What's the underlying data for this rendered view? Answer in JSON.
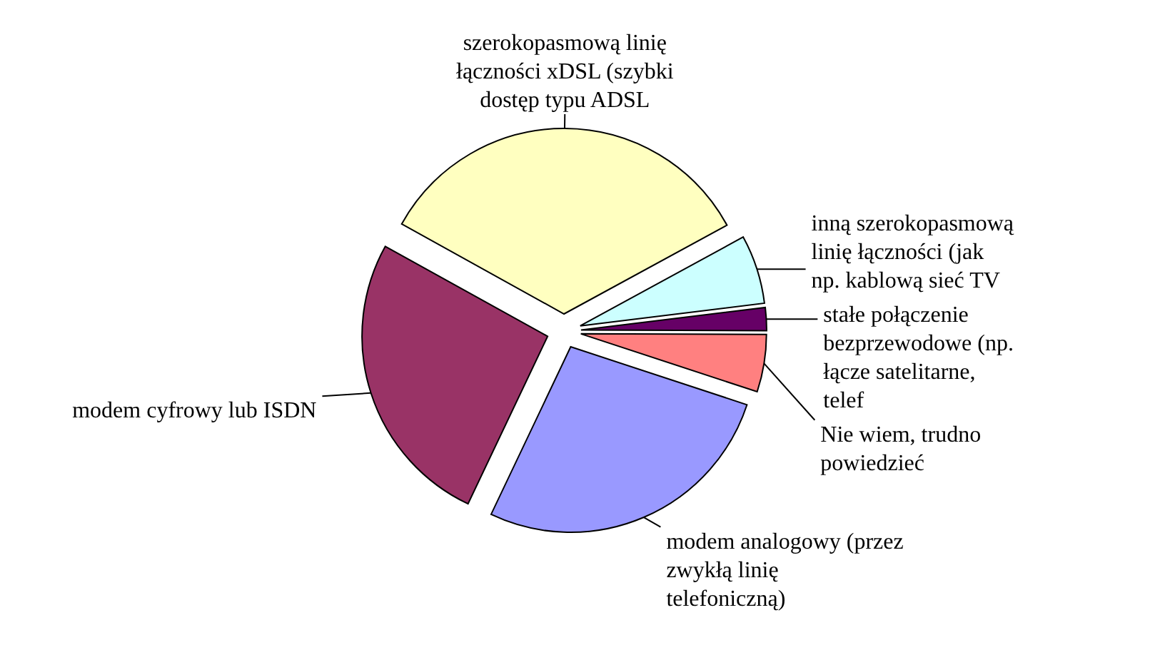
{
  "chart_data": {
    "type": "pie",
    "categories": [
      "szerokopasmową linię łączności xDSL (szybki dostęp typu ADSL",
      "inną szerokopasmową linię łączności (jak np. kablową sieć TV",
      "stałe połączenie bezprzewodowe (np. łącze satelitarne, telef",
      "Nie wiem, trudno powiedzieć",
      "modem analogowy (przez zwykłą linię telefoniczną)",
      "modem cyfrowy lub ISDN"
    ],
    "values": [
      34,
      6,
      2,
      5,
      27,
      26
    ],
    "colors": [
      "#ffffc0",
      "#ccffff",
      "#660066",
      "#ff8080",
      "#9999ff",
      "#993366"
    ]
  }
}
